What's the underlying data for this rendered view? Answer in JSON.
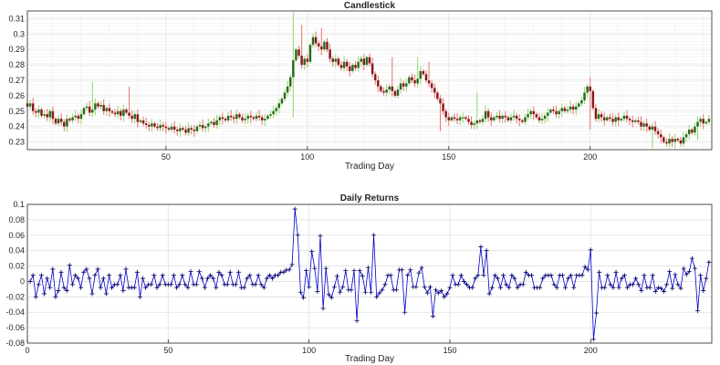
{
  "chart_data": [
    {
      "type": "candlestick",
      "title": "Candlestick",
      "xlabel": "Trading Day",
      "ylabel": "",
      "xlim": [
        1,
        243
      ],
      "ylim": [
        0.225,
        0.315
      ],
      "xticks": [
        50,
        100,
        150,
        200
      ],
      "yticks": [
        0.23,
        0.24,
        0.25,
        0.26,
        0.27,
        0.28,
        0.29,
        0.3,
        0.31
      ],
      "ytick_labels": [
        "0.23",
        "0.24",
        "0.25",
        "0.26",
        "0.27",
        "0.28",
        "0.29",
        "0.3",
        "0.31"
      ],
      "grid": true,
      "minor_grid": true,
      "colors": {
        "up_body": "#2d6a1e",
        "down_body": "#8b1a1a",
        "up_wick": "#8fd86a",
        "down_wick": "#e87272",
        "grid": "#e6e6e6",
        "axis": "#262626"
      },
      "close": [
        0.253,
        0.255,
        0.25,
        0.249,
        0.251,
        0.247,
        0.248,
        0.246,
        0.25,
        0.245,
        0.242,
        0.245,
        0.243,
        0.24,
        0.245,
        0.244,
        0.246,
        0.247,
        0.245,
        0.248,
        0.252,
        0.253,
        0.249,
        0.251,
        0.255,
        0.253,
        0.254,
        0.25,
        0.252,
        0.25,
        0.249,
        0.248,
        0.25,
        0.247,
        0.251,
        0.249,
        0.247,
        0.245,
        0.248,
        0.243,
        0.244,
        0.242,
        0.241,
        0.24,
        0.242,
        0.24,
        0.239,
        0.241,
        0.24,
        0.239,
        0.238,
        0.24,
        0.238,
        0.237,
        0.239,
        0.238,
        0.236,
        0.239,
        0.238,
        0.237,
        0.24,
        0.241,
        0.239,
        0.24,
        0.242,
        0.243,
        0.241,
        0.244,
        0.246,
        0.245,
        0.244,
        0.247,
        0.246,
        0.245,
        0.248,
        0.246,
        0.244,
        0.245,
        0.247,
        0.246,
        0.245,
        0.247,
        0.246,
        0.244,
        0.245,
        0.247,
        0.248,
        0.25,
        0.252,
        0.255,
        0.258,
        0.262,
        0.266,
        0.272,
        0.283,
        0.29,
        0.286,
        0.28,
        0.284,
        0.282,
        0.293,
        0.298,
        0.294,
        0.292,
        0.29,
        0.295,
        0.29,
        0.284,
        0.282,
        0.284,
        0.28,
        0.278,
        0.282,
        0.279,
        0.276,
        0.28,
        0.278,
        0.282,
        0.284,
        0.28,
        0.285,
        0.281,
        0.274,
        0.27,
        0.266,
        0.263,
        0.262,
        0.264,
        0.266,
        0.263,
        0.26,
        0.264,
        0.268,
        0.266,
        0.268,
        0.272,
        0.27,
        0.268,
        0.271,
        0.276,
        0.274,
        0.27,
        0.268,
        0.265,
        0.262,
        0.258,
        0.255,
        0.25,
        0.246,
        0.244,
        0.246,
        0.245,
        0.244,
        0.246,
        0.246,
        0.245,
        0.243,
        0.241,
        0.242,
        0.244,
        0.243,
        0.245,
        0.25,
        0.246,
        0.244,
        0.246,
        0.247,
        0.245,
        0.247,
        0.246,
        0.244,
        0.246,
        0.247,
        0.245,
        0.244,
        0.243,
        0.246,
        0.248,
        0.25,
        0.248,
        0.246,
        0.244,
        0.245,
        0.247,
        0.249,
        0.251,
        0.25,
        0.248,
        0.25,
        0.252,
        0.25,
        0.251,
        0.253,
        0.251,
        0.253,
        0.255,
        0.257,
        0.262,
        0.266,
        0.263,
        0.252,
        0.245,
        0.248,
        0.246,
        0.244,
        0.246,
        0.245,
        0.243,
        0.246,
        0.244,
        0.245,
        0.247,
        0.245,
        0.244,
        0.243,
        0.244,
        0.243,
        0.24,
        0.242,
        0.24,
        0.238,
        0.24,
        0.237,
        0.235,
        0.233,
        0.23,
        0.229,
        0.232,
        0.23,
        0.232,
        0.231,
        0.229,
        0.233,
        0.235,
        0.238,
        0.236,
        0.24,
        0.243,
        0.245,
        0.242,
        0.243,
        0.245
      ],
      "spikes": {
        "high": {
          "24": 0.269,
          "37": 0.266,
          "95": 0.314,
          "98": 0.306,
          "105": 0.304,
          "130": 0.285,
          "139": 0.285,
          "143": 0.282,
          "160": 0.262,
          "200": 0.272
        },
        "low": {
          "95": 0.246,
          "147": 0.237,
          "200": 0.238,
          "222": 0.226,
          "230": 0.226,
          "238": 0.231
        }
      }
    },
    {
      "type": "line",
      "title": "Daily Returns",
      "xlabel": "Trading Day",
      "ylabel": "",
      "xlim": [
        0,
        243
      ],
      "ylim": [
        -0.08,
        0.1
      ],
      "xticks": [
        0,
        50,
        100,
        150,
        200
      ],
      "yticks": [
        -0.08,
        -0.06,
        -0.04,
        -0.02,
        0,
        0.02,
        0.04,
        0.06,
        0.08,
        0.1
      ],
      "ytick_labels": [
        "-0.08",
        "-0.06",
        "-0.04",
        "-0.02",
        "0",
        "0.02",
        "0.04",
        "0.06",
        "0.08",
        "0.1"
      ],
      "marker": "+",
      "grid": true,
      "colors": {
        "line": "#0000cc",
        "marker": "#000066",
        "grid": "#e0e0e0",
        "axis": "#262626"
      },
      "series": [
        {
          "values": [
            0.0,
            0.008,
            -0.02,
            -0.004,
            0.008,
            -0.016,
            0.004,
            -0.008,
            0.016,
            -0.02,
            -0.012,
            0.012,
            -0.008,
            -0.012,
            0.021,
            -0.004,
            0.008,
            0.004,
            -0.008,
            0.012,
            0.016,
            0.004,
            -0.016,
            0.008,
            0.016,
            -0.008,
            0.004,
            -0.016,
            0.008,
            -0.008,
            -0.004,
            -0.004,
            0.008,
            -0.012,
            0.016,
            -0.008,
            -0.008,
            -0.008,
            0.012,
            -0.02,
            0.004,
            -0.008,
            -0.004,
            -0.004,
            0.008,
            -0.008,
            -0.004,
            0.008,
            -0.004,
            -0.004,
            -0.004,
            0.008,
            -0.008,
            -0.004,
            0.008,
            -0.004,
            -0.008,
            0.013,
            -0.004,
            -0.004,
            0.013,
            0.004,
            -0.008,
            0.004,
            0.008,
            0.004,
            -0.008,
            0.012,
            0.008,
            -0.004,
            -0.004,
            0.012,
            -0.004,
            -0.004,
            0.012,
            -0.008,
            -0.008,
            0.004,
            0.008,
            -0.004,
            -0.004,
            0.008,
            -0.004,
            -0.008,
            0.004,
            0.008,
            0.004,
            0.008,
            0.008,
            0.012,
            0.012,
            0.015,
            0.015,
            0.022,
            0.04,
            0.025,
            -0.014,
            -0.021,
            0.014,
            -0.007,
            0.039,
            0.017,
            -0.013,
            -0.007,
            -0.007,
            0.017,
            -0.017,
            -0.021,
            -0.007,
            0.007,
            -0.014,
            -0.007,
            0.014,
            -0.011,
            -0.011,
            0.014,
            -0.007,
            0.014,
            0.007,
            -0.014,
            0.018,
            -0.014,
            -0.025,
            -0.015,
            -0.015,
            -0.011,
            -0.004,
            0.008,
            0.008,
            -0.011,
            -0.011,
            0.015,
            0.015,
            -0.007,
            0.008,
            0.015,
            -0.007,
            -0.007,
            0.011,
            0.018,
            -0.007,
            -0.015,
            -0.007,
            -0.011,
            -0.011,
            -0.015,
            -0.012,
            -0.02,
            -0.016,
            -0.008,
            0.008,
            -0.004,
            -0.004,
            0.008,
            0.0,
            -0.004,
            -0.008,
            -0.008,
            0.004,
            0.008,
            -0.004,
            0.008,
            0.02,
            -0.016,
            -0.008,
            0.008,
            0.004,
            -0.008,
            0.008,
            -0.004,
            -0.008,
            0.008,
            0.004,
            -0.008,
            -0.004,
            -0.004,
            0.012,
            0.008,
            0.008,
            -0.008,
            -0.008,
            -0.008,
            0.004,
            0.008,
            0.008,
            0.008,
            -0.004,
            -0.008,
            0.008,
            0.008,
            -0.008,
            0.004,
            0.008,
            -0.008,
            0.008,
            0.008,
            0.008,
            0.019,
            0.015,
            -0.011,
            -0.042,
            -0.028,
            0.012,
            -0.008,
            -0.008,
            0.008,
            -0.004,
            -0.008,
            0.012,
            -0.008,
            0.004,
            0.008,
            -0.008,
            -0.004,
            -0.004,
            0.004,
            -0.004,
            -0.012,
            0.008,
            -0.008,
            -0.008,
            0.008,
            -0.013,
            -0.008,
            -0.009,
            -0.013,
            -0.004,
            0.013,
            -0.009,
            0.009,
            -0.004,
            -0.009,
            0.017,
            0.009,
            0.013,
            -0.008,
            0.017,
            0.012,
            0.008,
            -0.012,
            0.004,
            0.008
          ],
          "peaks": {
            "94": 0.094,
            "95": 0.06,
            "103": 0.059,
            "104": -0.035,
            "116": -0.051,
            "122": 0.06,
            "123": -0.02,
            "133": -0.04,
            "143": -0.045,
            "160": 0.045,
            "162": 0.04,
            "199": 0.041,
            "200": -0.075,
            "201": -0.041,
            "235": 0.03,
            "237": -0.038,
            "241": 0.025
          }
        }
      ]
    }
  ]
}
